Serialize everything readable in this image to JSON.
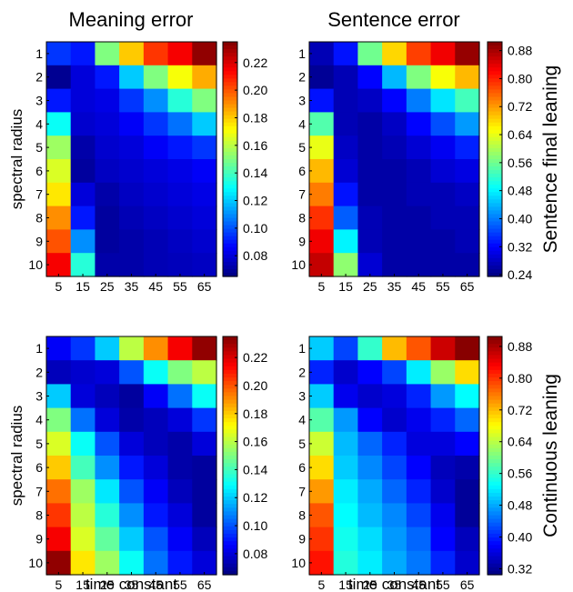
{
  "chart_data": {
    "type": "heatmap",
    "colormap": "jet",
    "column_titles": [
      "Meaning error",
      "Sentence error"
    ],
    "row_titles": [
      "Sentence final leaning",
      "Continuous leaning"
    ],
    "xlabel": "time constant",
    "ylabel": "spectral radius",
    "x_ticks": [
      "5",
      "15",
      "25",
      "35",
      "45",
      "55",
      "65"
    ],
    "y_ticks": [
      "1",
      "2",
      "3",
      "4",
      "5",
      "6",
      "7",
      "8",
      "9",
      "10"
    ],
    "panels": [
      {
        "title": "Meaning error",
        "row_label": "",
        "xlabel": "",
        "ylabel": "spectral radius",
        "clim": [
          0.065,
          0.235
        ],
        "colorbar_ticks": [
          0.08,
          0.1,
          0.12,
          0.14,
          0.16,
          0.18,
          0.2,
          0.22
        ],
        "colorbar_tick_labels": [
          "0.08",
          "0.10",
          "0.12",
          "0.14",
          "0.16",
          "0.18",
          "0.20",
          "0.22"
        ],
        "values": [
          [
            0.095,
            0.09,
            0.15,
            0.18,
            0.205,
            0.215,
            0.232
          ],
          [
            0.068,
            0.08,
            0.09,
            0.12,
            0.15,
            0.17,
            0.185
          ],
          [
            0.09,
            0.08,
            0.082,
            0.095,
            0.11,
            0.135,
            0.15
          ],
          [
            0.13,
            0.078,
            0.08,
            0.085,
            0.095,
            0.105,
            0.12
          ],
          [
            0.155,
            0.072,
            0.078,
            0.08,
            0.085,
            0.09,
            0.095
          ],
          [
            0.165,
            0.07,
            0.076,
            0.078,
            0.08,
            0.082,
            0.085
          ],
          [
            0.175,
            0.08,
            0.072,
            0.076,
            0.078,
            0.08,
            0.082
          ],
          [
            0.19,
            0.09,
            0.07,
            0.074,
            0.076,
            0.078,
            0.08
          ],
          [
            0.2,
            0.11,
            0.07,
            0.072,
            0.074,
            0.076,
            0.078
          ],
          [
            0.215,
            0.135,
            0.072,
            0.072,
            0.074,
            0.075,
            0.076
          ]
        ]
      },
      {
        "title": "Sentence error",
        "row_label": "Sentence final leaning",
        "xlabel": "",
        "ylabel": "",
        "clim": [
          0.235,
          0.905
        ],
        "colorbar_ticks": [
          0.24,
          0.32,
          0.4,
          0.48,
          0.56,
          0.64,
          0.72,
          0.8,
          0.88
        ],
        "colorbar_tick_labels": [
          "0.24",
          "0.32",
          "0.40",
          "0.48",
          "0.56",
          "0.64",
          "0.72",
          "0.80",
          "0.88"
        ],
        "values": [
          [
            0.27,
            0.33,
            0.56,
            0.68,
            0.78,
            0.83,
            0.89
          ],
          [
            0.25,
            0.27,
            0.32,
            0.44,
            0.57,
            0.65,
            0.7
          ],
          [
            0.33,
            0.27,
            0.28,
            0.32,
            0.4,
            0.47,
            0.53
          ],
          [
            0.54,
            0.27,
            0.26,
            0.28,
            0.32,
            0.37,
            0.42
          ],
          [
            0.64,
            0.28,
            0.26,
            0.27,
            0.29,
            0.31,
            0.34
          ],
          [
            0.7,
            0.29,
            0.26,
            0.26,
            0.27,
            0.29,
            0.3
          ],
          [
            0.74,
            0.33,
            0.26,
            0.26,
            0.27,
            0.27,
            0.28
          ],
          [
            0.79,
            0.38,
            0.27,
            0.26,
            0.26,
            0.27,
            0.27
          ],
          [
            0.83,
            0.48,
            0.27,
            0.26,
            0.26,
            0.26,
            0.27
          ],
          [
            0.86,
            0.58,
            0.29,
            0.26,
            0.26,
            0.26,
            0.26
          ]
        ]
      },
      {
        "title": "",
        "row_label": "",
        "xlabel": "time constant",
        "ylabel": "spectral radius",
        "clim": [
          0.065,
          0.235
        ],
        "colorbar_ticks": [
          0.08,
          0.1,
          0.12,
          0.14,
          0.16,
          0.18,
          0.2,
          0.22
        ],
        "colorbar_tick_labels": [
          "0.08",
          "0.10",
          "0.12",
          "0.14",
          "0.16",
          "0.18",
          "0.20",
          "0.22"
        ],
        "values": [
          [
            0.085,
            0.095,
            0.12,
            0.16,
            0.19,
            0.215,
            0.232
          ],
          [
            0.075,
            0.078,
            0.08,
            0.1,
            0.13,
            0.15,
            0.16
          ],
          [
            0.12,
            0.08,
            0.075,
            0.07,
            0.085,
            0.105,
            0.13
          ],
          [
            0.15,
            0.105,
            0.08,
            0.072,
            0.075,
            0.08,
            0.095
          ],
          [
            0.165,
            0.13,
            0.1,
            0.08,
            0.075,
            0.072,
            0.08
          ],
          [
            0.18,
            0.14,
            0.11,
            0.09,
            0.08,
            0.072,
            0.07
          ],
          [
            0.195,
            0.155,
            0.125,
            0.1,
            0.085,
            0.075,
            0.07
          ],
          [
            0.205,
            0.16,
            0.135,
            0.11,
            0.09,
            0.08,
            0.07
          ],
          [
            0.215,
            0.165,
            0.145,
            0.12,
            0.1,
            0.085,
            0.075
          ],
          [
            0.232,
            0.175,
            0.155,
            0.13,
            0.105,
            0.09,
            0.08
          ]
        ]
      },
      {
        "title": "",
        "row_label": "Continuous leaning",
        "xlabel": "time constant",
        "ylabel": "",
        "clim": [
          0.305,
          0.905
        ],
        "colorbar_ticks": [
          0.32,
          0.4,
          0.48,
          0.56,
          0.64,
          0.72,
          0.8,
          0.88
        ],
        "colorbar_tick_labels": [
          "0.32",
          "0.40",
          "0.48",
          "0.56",
          "0.64",
          "0.72",
          "0.80",
          "0.88"
        ],
        "values": [
          [
            0.5,
            0.42,
            0.56,
            0.72,
            0.78,
            0.86,
            0.9
          ],
          [
            0.4,
            0.35,
            0.38,
            0.42,
            0.52,
            0.62,
            0.7
          ],
          [
            0.5,
            0.37,
            0.35,
            0.36,
            0.4,
            0.47,
            0.53
          ],
          [
            0.58,
            0.47,
            0.38,
            0.35,
            0.37,
            0.4,
            0.44
          ],
          [
            0.65,
            0.49,
            0.44,
            0.4,
            0.36,
            0.36,
            0.38
          ],
          [
            0.7,
            0.5,
            0.46,
            0.42,
            0.38,
            0.34,
            0.33
          ],
          [
            0.74,
            0.52,
            0.48,
            0.44,
            0.4,
            0.35,
            0.32
          ],
          [
            0.78,
            0.53,
            0.49,
            0.46,
            0.42,
            0.37,
            0.32
          ],
          [
            0.8,
            0.54,
            0.51,
            0.47,
            0.44,
            0.38,
            0.34
          ],
          [
            0.82,
            0.55,
            0.52,
            0.48,
            0.45,
            0.4,
            0.35
          ]
        ]
      }
    ]
  }
}
